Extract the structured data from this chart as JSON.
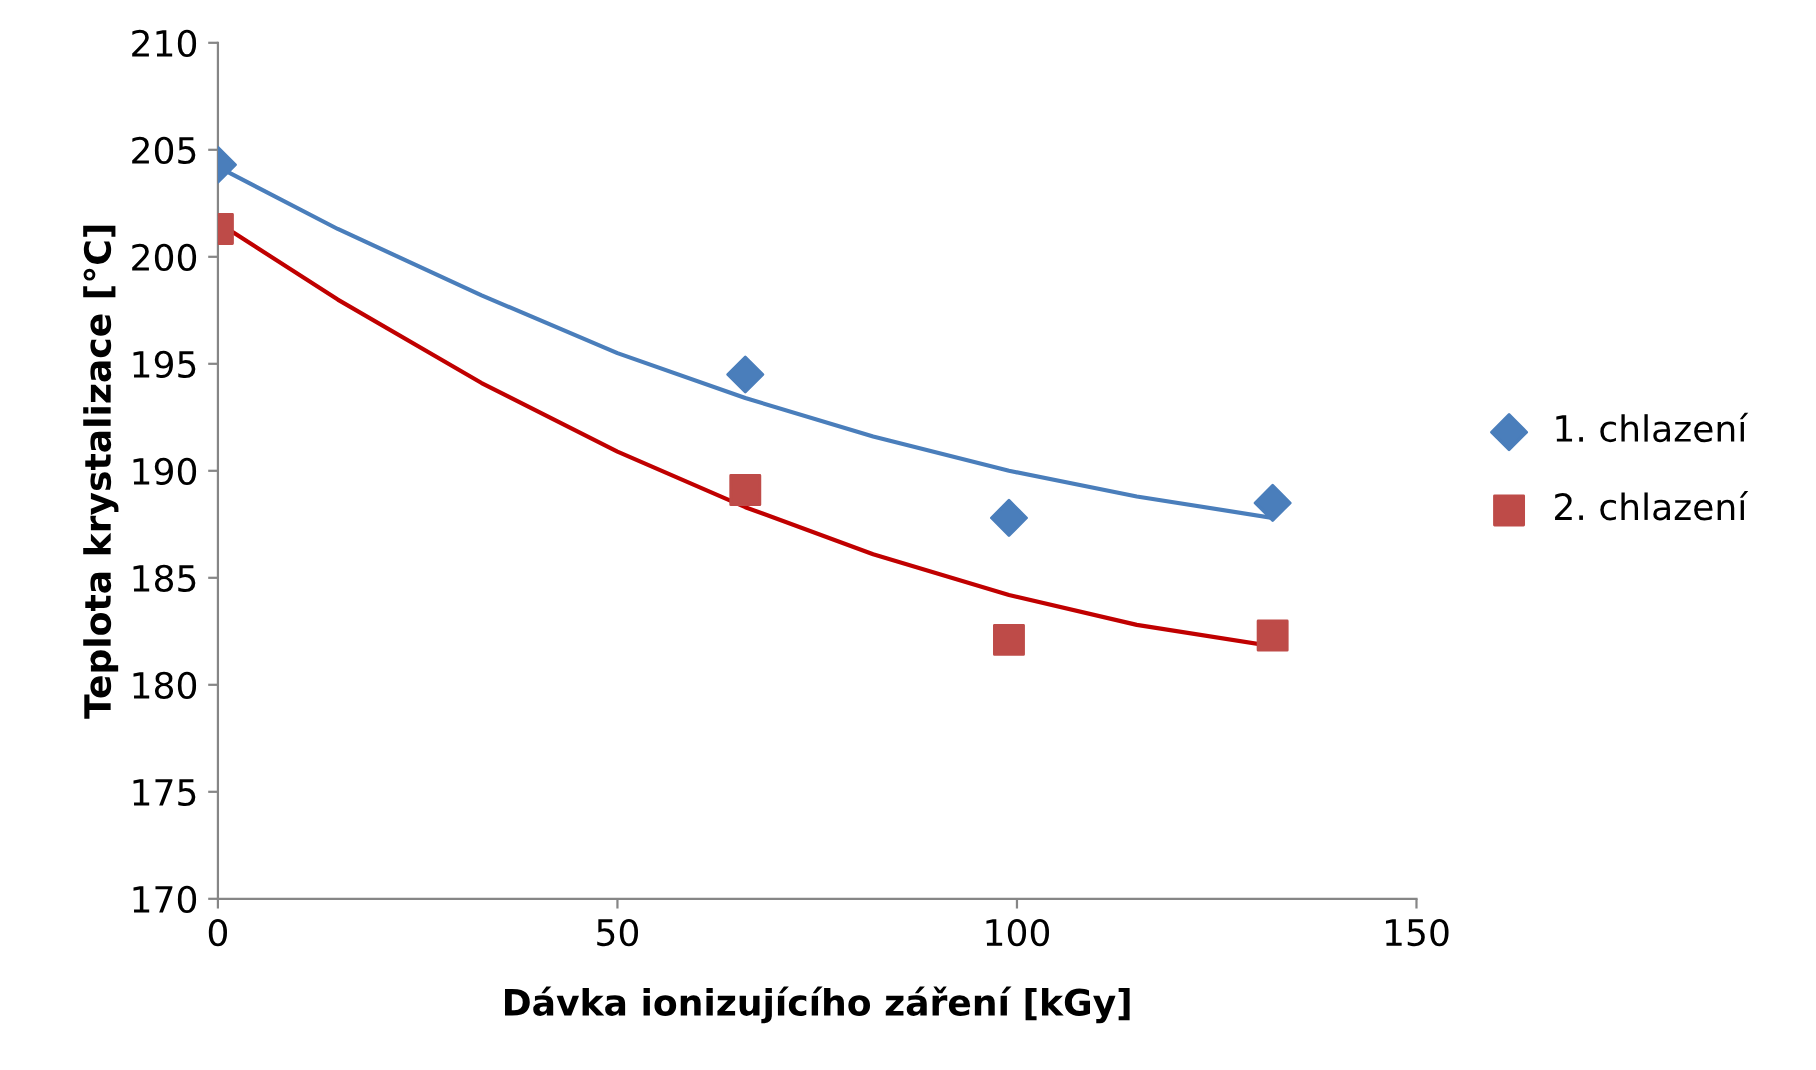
{
  "chart_data": {
    "type": "scatter",
    "xlabel": "Dávka ionizujícího záření [kGy]",
    "ylabel": "Teplota krystalizace [°C]",
    "xlim": [
      0,
      150
    ],
    "xticks": [
      0,
      50,
      100,
      150
    ],
    "ylim": [
      170,
      210
    ],
    "yticks": [
      170,
      175,
      180,
      185,
      190,
      195,
      200,
      205,
      210
    ],
    "grid": false,
    "legend": "right",
    "series": [
      {
        "name": "1. chlazení",
        "color": "#4a7ebb",
        "marker": "diamond",
        "x": [
          0,
          66,
          99,
          132
        ],
        "values": [
          204.3,
          194.5,
          187.8,
          188.5
        ]
      },
      {
        "name": "2. chlazení",
        "color": "#be4b48",
        "marker": "square",
        "x": [
          0,
          66,
          99,
          132
        ],
        "values": [
          201.3,
          189.1,
          182.1,
          182.3
        ]
      },
      {
        "type": "line",
        "color": "#4a7ebb",
        "x": [
          0,
          15,
          33,
          50,
          66,
          82,
          99,
          115,
          132
        ],
        "values": [
          204.2,
          201.3,
          198.2,
          195.5,
          193.4,
          191.6,
          190.0,
          188.8,
          187.8
        ]
      },
      {
        "type": "line",
        "color": "#c00000",
        "x": [
          0,
          15,
          33,
          50,
          66,
          82,
          99,
          115,
          132
        ],
        "values": [
          201.6,
          198.0,
          194.1,
          190.9,
          188.3,
          186.1,
          184.2,
          182.8,
          181.8
        ]
      }
    ]
  }
}
